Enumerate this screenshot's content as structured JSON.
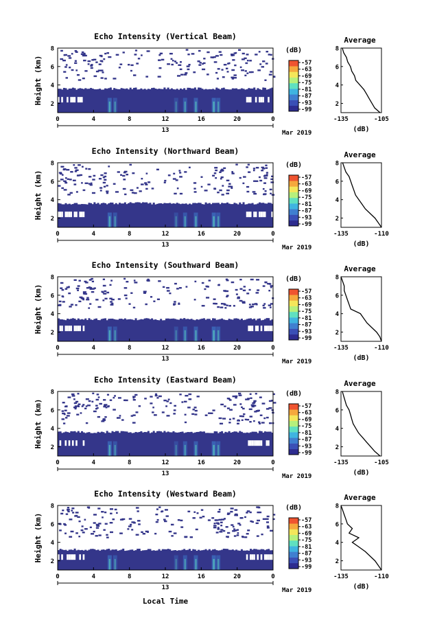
{
  "figure": {
    "xlabel": "Local Time",
    "day_label": "13",
    "month_label": "Mar 2019",
    "unit_label": "(dB)",
    "colorbar_ticks": [
      "-57",
      "-63",
      "-69",
      "-75",
      "-81",
      "-87",
      "-93",
      "-99"
    ],
    "colorscale": [
      "#2d2c8f",
      "#3a4fb6",
      "#3f7fd0",
      "#3fb4e0",
      "#5fe0c0",
      "#b6f07c",
      "#f4e65a",
      "#f5a83d",
      "#ef5430"
    ],
    "heatmap_base_color": "#34368a"
  },
  "chart_data": [
    {
      "type": "heatmap",
      "title": "Echo Intensity (Vertical Beam)",
      "ylabel": "Height (km)",
      "x_ticks": [
        "0",
        "4",
        "8",
        "12",
        "16",
        "20",
        "0"
      ],
      "y_ticks": [
        "2",
        "4",
        "6",
        "8"
      ],
      "xlim": [
        0,
        24
      ],
      "ylim": [
        1,
        8
      ],
      "colorbar_range": [
        -99,
        -57
      ],
      "echo_top_km": 3.6,
      "average_profile": {
        "title": "Average",
        "xlabel": "(dB)",
        "x_ticks": [
          "-135",
          "-105"
        ],
        "xlim": [
          -135,
          -105
        ],
        "y_ticks": [
          "2",
          "4",
          "6",
          "8"
        ],
        "height_km": [
          1.0,
          1.5,
          2.0,
          2.5,
          3.0,
          3.5,
          4.0,
          4.5,
          5.0,
          5.5,
          6.0,
          6.5,
          7.0,
          7.5,
          8.0
        ],
        "db": [
          -106,
          -110,
          -112,
          -114,
          -116,
          -118,
          -121,
          -124,
          -125,
          -127,
          -128,
          -130,
          -131,
          -133,
          -134
        ]
      }
    },
    {
      "type": "heatmap",
      "title": "Echo Intensity (Northward Beam)",
      "ylabel": "Height (km)",
      "x_ticks": [
        "0",
        "4",
        "8",
        "12",
        "16",
        "20",
        "0"
      ],
      "y_ticks": [
        "2",
        "4",
        "6",
        "8"
      ],
      "xlim": [
        0,
        24
      ],
      "ylim": [
        1,
        8
      ],
      "colorbar_range": [
        -99,
        -57
      ],
      "echo_top_km": 3.6,
      "average_profile": {
        "title": "Average",
        "xlabel": "(dB)",
        "x_ticks": [
          "-135",
          "-110"
        ],
        "xlim": [
          -135,
          -110
        ],
        "y_ticks": [
          "2",
          "4",
          "6",
          "8"
        ],
        "height_km": [
          1.0,
          1.5,
          2.0,
          2.5,
          3.0,
          3.5,
          4.0,
          4.5,
          5.0,
          5.5,
          6.0,
          6.5,
          7.0,
          7.5,
          8.0
        ],
        "db": [
          -110,
          -112,
          -114,
          -117,
          -120,
          -122,
          -124,
          -126,
          -127,
          -128,
          -129,
          -130,
          -132,
          -133,
          -134
        ]
      }
    },
    {
      "type": "heatmap",
      "title": "Echo Intensity (Southward Beam)",
      "ylabel": "Height (km)",
      "x_ticks": [
        "0",
        "4",
        "8",
        "12",
        "16",
        "20",
        "0"
      ],
      "y_ticks": [
        "2",
        "4",
        "6",
        "8"
      ],
      "xlim": [
        0,
        24
      ],
      "ylim": [
        1,
        8
      ],
      "colorbar_range": [
        -99,
        -57
      ],
      "echo_top_km": 3.4,
      "average_profile": {
        "title": "Average",
        "xlabel": "(dB)",
        "x_ticks": [
          "-135",
          "-110"
        ],
        "xlim": [
          -135,
          -110
        ],
        "y_ticks": [
          "2",
          "4",
          "6",
          "8"
        ],
        "height_km": [
          1.0,
          1.5,
          2.0,
          2.5,
          3.0,
          3.5,
          4.0,
          4.5,
          5.0,
          5.5,
          6.0,
          6.5,
          7.0,
          7.5,
          8.0
        ],
        "db": [
          -110,
          -111,
          -113,
          -116,
          -119,
          -121,
          -123,
          -129,
          -130,
          -131,
          -132,
          -133,
          -133,
          -134,
          -135
        ]
      }
    },
    {
      "type": "heatmap",
      "title": "Echo Intensity (Eastward Beam)",
      "ylabel": "Height (km)",
      "x_ticks": [
        "0",
        "4",
        "8",
        "12",
        "16",
        "20",
        "0"
      ],
      "y_ticks": [
        "2",
        "4",
        "6",
        "8"
      ],
      "xlim": [
        0,
        24
      ],
      "ylim": [
        1,
        8
      ],
      "colorbar_range": [
        -99,
        -57
      ],
      "echo_top_km": 3.6,
      "average_profile": {
        "title": "Average",
        "xlabel": "(dB)",
        "x_ticks": [
          "-135",
          "-105"
        ],
        "xlim": [
          -135,
          -105
        ],
        "y_ticks": [
          "2",
          "4",
          "6",
          "8"
        ],
        "height_km": [
          1.0,
          1.5,
          2.0,
          2.5,
          3.0,
          3.5,
          4.0,
          4.5,
          5.0,
          5.5,
          6.0,
          6.5,
          7.0,
          7.5,
          8.0
        ],
        "db": [
          -106,
          -110,
          -113,
          -116,
          -119,
          -122,
          -124,
          -126,
          -127,
          -128,
          -129,
          -131,
          -132,
          -133,
          -134
        ]
      }
    },
    {
      "type": "heatmap",
      "title": "Echo Intensity (Westward Beam)",
      "ylabel": "Height (km)",
      "x_ticks": [
        "0",
        "4",
        "8",
        "12",
        "16",
        "20",
        "0"
      ],
      "y_ticks": [
        "2",
        "4",
        "6",
        "8"
      ],
      "xlim": [
        0,
        24
      ],
      "ylim": [
        1,
        8
      ],
      "colorbar_range": [
        -99,
        -57
      ],
      "echo_top_km": 3.2,
      "average_profile": {
        "title": "Average",
        "xlabel": "(dB)",
        "x_ticks": [
          "-135",
          "-110"
        ],
        "xlim": [
          -135,
          -110
        ],
        "y_ticks": [
          "2",
          "4",
          "6",
          "8"
        ],
        "height_km": [
          1.0,
          1.5,
          2.0,
          2.5,
          3.0,
          3.5,
          4.0,
          4.5,
          5.0,
          5.5,
          6.0,
          6.5,
          7.0,
          7.5,
          8.0
        ],
        "db": [
          -110,
          -112,
          -114,
          -117,
          -120,
          -124,
          -128,
          -124,
          -130,
          -128,
          -131,
          -132,
          -133,
          -134,
          -135
        ]
      }
    }
  ]
}
